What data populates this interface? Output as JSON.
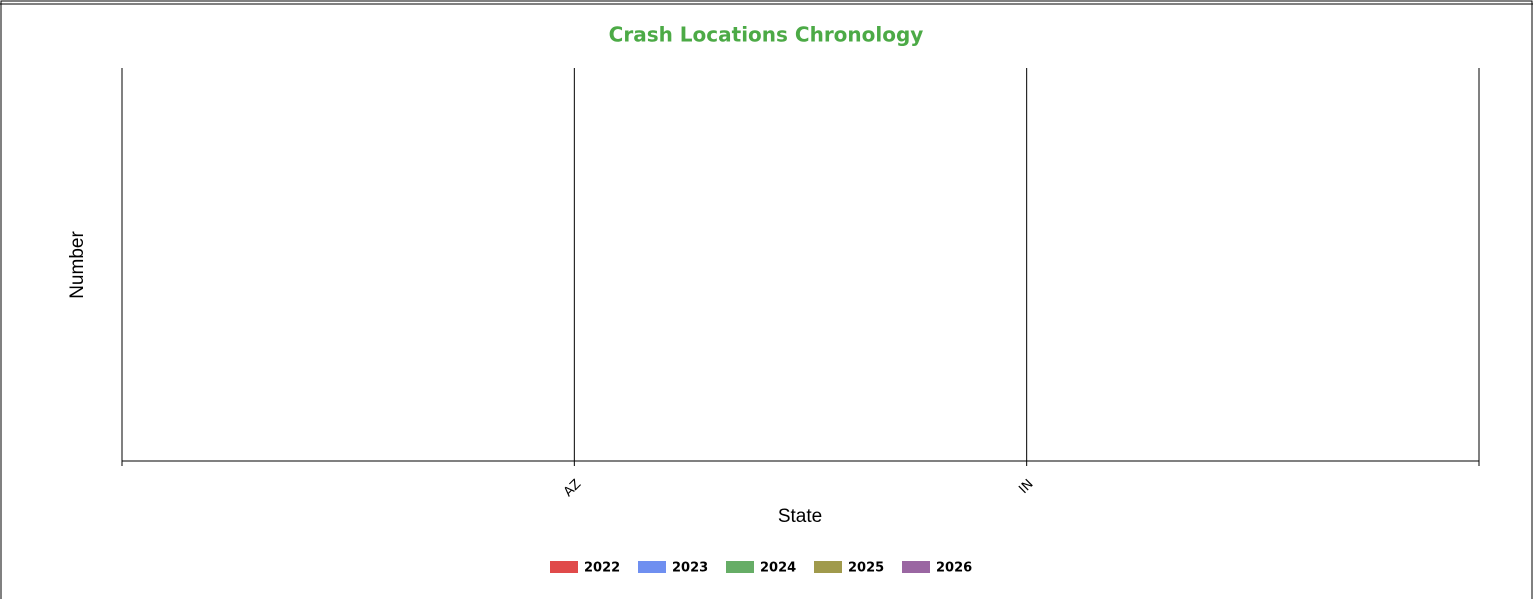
{
  "chart_data": {
    "type": "bar",
    "title": "Crash Locations Chronology",
    "xlabel": "State",
    "ylabel": "Number",
    "categories": [
      "AZ",
      "IN"
    ],
    "series": [
      {
        "name": "2022",
        "color": "#e04a4a",
        "values": [
          0,
          0
        ]
      },
      {
        "name": "2023",
        "color": "#6f8ff0",
        "values": [
          0,
          0
        ]
      },
      {
        "name": "2024",
        "color": "#66ad66",
        "values": [
          0,
          0
        ]
      },
      {
        "name": "2025",
        "color": "#a09a4c",
        "values": [
          0,
          0
        ]
      },
      {
        "name": "2026",
        "color": "#9a66a2",
        "values": [
          0,
          0
        ]
      }
    ]
  }
}
